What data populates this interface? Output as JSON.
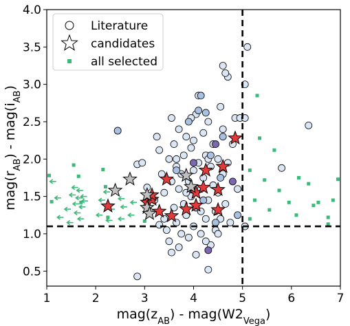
{
  "chart_data": {
    "type": "scatter",
    "xlabel": "mag(z_AB) - mag(W2_Vega)",
    "ylabel": "mag(r_AB) - mag(i_AB)",
    "xlim": [
      1,
      7
    ],
    "ylim": [
      0.3,
      4.0
    ],
    "xticks": [
      1,
      2,
      3,
      4,
      5,
      6,
      7
    ],
    "yticks": [
      0.5,
      1.0,
      1.5,
      2.0,
      2.5,
      3.0,
      3.5,
      4.0
    ],
    "xtick_labels": [
      "1",
      "2",
      "3",
      "4",
      "5",
      "6",
      "7"
    ],
    "ytick_labels": [
      "0.5",
      "1.0",
      "1.5",
      "2.0",
      "2.5",
      "3.0",
      "3.5",
      "4.0"
    ],
    "grid": false,
    "legend_position": "top-left",
    "cut_lines": {
      "x": 5.0,
      "y": 1.1
    },
    "colors": {
      "literature_face": "#dbe6f4",
      "literature_alt": "#a9c0e0",
      "literature_dark": "#7b68b0",
      "candidate_red": "#e03a3a",
      "candidate_gray": "#c0c0c0",
      "all_selected": "#3cb878",
      "arrow": "#3cb878"
    },
    "series": [
      {
        "name": "Literature",
        "marker": "circle",
        "points": [
          [
            2.45,
            2.38
          ],
          [
            2.85,
            1.93
          ],
          [
            2.85,
            0.43
          ],
          [
            2.95,
            1.95
          ],
          [
            3.05,
            1.62
          ],
          [
            3.1,
            1.3
          ],
          [
            3.2,
            1.45
          ],
          [
            3.25,
            2.3
          ],
          [
            3.3,
            2.12
          ],
          [
            3.35,
            1.8
          ],
          [
            3.4,
            1.2
          ],
          [
            3.4,
            1.55
          ],
          [
            3.45,
            1.05
          ],
          [
            3.5,
            2.0
          ],
          [
            3.5,
            0.9
          ],
          [
            3.55,
            1.7
          ],
          [
            3.55,
            2.55
          ],
          [
            3.6,
            1.35
          ],
          [
            3.6,
            2.2
          ],
          [
            3.65,
            1.9
          ],
          [
            3.65,
            1.15
          ],
          [
            3.7,
            1.6
          ],
          [
            3.7,
            2.4
          ],
          [
            3.75,
            1.0
          ],
          [
            3.75,
            1.8
          ],
          [
            3.8,
            2.05
          ],
          [
            3.8,
            1.4
          ],
          [
            3.85,
            1.25
          ],
          [
            3.85,
            2.3
          ],
          [
            3.9,
            1.7
          ],
          [
            3.9,
            0.95
          ],
          [
            3.95,
            2.15
          ],
          [
            3.95,
            1.5
          ],
          [
            4.0,
            1.85
          ],
          [
            4.0,
            1.1
          ],
          [
            4.05,
            2.6
          ],
          [
            4.05,
            1.35
          ],
          [
            4.1,
            1.95
          ],
          [
            4.1,
            2.85
          ],
          [
            4.15,
            1.6
          ],
          [
            4.15,
            1.0
          ],
          [
            4.2,
            2.35
          ],
          [
            4.2,
            1.75
          ],
          [
            4.25,
            1.2
          ],
          [
            4.25,
            2.05
          ],
          [
            4.3,
            1.45
          ],
          [
            4.3,
            2.5
          ],
          [
            4.35,
            1.9
          ],
          [
            4.35,
            0.85
          ],
          [
            4.4,
            1.65
          ],
          [
            4.4,
            2.2
          ],
          [
            4.45,
            1.3
          ],
          [
            4.45,
            1.05
          ],
          [
            4.5,
            2.0
          ],
          [
            4.5,
            1.55
          ],
          [
            4.55,
            2.7
          ],
          [
            4.55,
            1.2
          ],
          [
            4.6,
            1.8
          ],
          [
            4.6,
            2.4
          ],
          [
            4.65,
            1.4
          ],
          [
            4.7,
            3.1
          ],
          [
            4.7,
            1.95
          ],
          [
            4.75,
            1.15
          ],
          [
            4.8,
            2.2
          ],
          [
            4.85,
            2.55
          ],
          [
            4.9,
            1.6
          ],
          [
            4.95,
            2.55
          ],
          [
            5.05,
            3.0
          ],
          [
            5.05,
            2.55
          ],
          [
            5.05,
            1.1
          ],
          [
            5.1,
            3.5
          ],
          [
            3.55,
            0.75
          ],
          [
            3.7,
            0.82
          ],
          [
            4.05,
            0.72
          ],
          [
            4.25,
            0.9
          ],
          [
            4.3,
            0.52
          ],
          [
            3.65,
            2.0
          ],
          [
            3.85,
            1.55
          ],
          [
            4.15,
            1.3
          ],
          [
            4.5,
            1.0
          ],
          [
            5.8,
            1.88
          ],
          [
            6.35,
            2.45
          ],
          [
            4.6,
            3.25
          ],
          [
            4.65,
            3.15
          ],
          [
            4.0,
            2.25
          ],
          [
            3.3,
            1.12
          ],
          [
            3.95,
            2.55
          ],
          [
            4.3,
            2.0
          ]
        ]
      },
      {
        "name": "Literature (shaded)",
        "marker": "circle-dark",
        "points": [
          [
            2.45,
            2.38
          ],
          [
            4.15,
            2.85
          ],
          [
            4.25,
            2.62
          ],
          [
            4.45,
            2.2
          ],
          [
            4.6,
            2.3
          ],
          [
            4.1,
            2.65
          ],
          [
            3.9,
            2.5
          ],
          [
            4.0,
            1.95
          ],
          [
            4.35,
            2.05
          ],
          [
            4.2,
            1.45
          ],
          [
            4.55,
            1.75
          ],
          [
            4.8,
            1.7
          ],
          [
            4.9,
            1.25
          ],
          [
            3.65,
            1.85
          ],
          [
            4.45,
            1.15
          ],
          [
            4.3,
            0.78
          ],
          [
            4.05,
            1.35
          ],
          [
            3.95,
            1.6
          ]
        ]
      },
      {
        "name": "candidates",
        "marker": "star",
        "points": [
          [
            2.25,
            1.37
          ],
          [
            3.05,
            1.42
          ],
          [
            3.15,
            1.46
          ],
          [
            3.3,
            1.3
          ],
          [
            3.45,
            1.73
          ],
          [
            3.55,
            1.24
          ],
          [
            3.85,
            1.33
          ],
          [
            4.05,
            1.55
          ],
          [
            4.2,
            1.62
          ],
          [
            4.25,
            1.85
          ],
          [
            4.5,
            1.59
          ],
          [
            4.5,
            1.32
          ],
          [
            4.6,
            1.9
          ],
          [
            4.85,
            2.28
          ],
          [
            3.15,
            1.52
          ],
          [
            4.05,
            1.38
          ]
        ]
      },
      {
        "name": "candidates (gray)",
        "marker": "star-gray",
        "points": [
          [
            2.4,
            1.58
          ],
          [
            2.7,
            1.73
          ],
          [
            3.05,
            1.52
          ],
          [
            3.05,
            1.35
          ],
          [
            3.1,
            1.27
          ],
          [
            3.95,
            1.63
          ],
          [
            3.85,
            1.78
          ]
        ]
      },
      {
        "name": "all selected",
        "marker": "square",
        "points": [
          [
            1.05,
            1.78
          ],
          [
            1.1,
            1.43
          ],
          [
            1.55,
            1.92
          ],
          [
            1.65,
            1.77
          ],
          [
            1.7,
            1.42
          ],
          [
            2.15,
            1.86
          ],
          [
            2.2,
            1.63
          ],
          [
            2.25,
            1.22
          ],
          [
            3.0,
            1.17
          ],
          [
            3.05,
            1.28
          ],
          [
            5.15,
            1.85
          ],
          [
            5.25,
            1.45
          ],
          [
            5.3,
            2.85
          ],
          [
            5.35,
            2.28
          ],
          [
            5.45,
            1.72
          ],
          [
            5.55,
            1.32
          ],
          [
            5.75,
            1.58
          ],
          [
            6.1,
            1.25
          ],
          [
            6.15,
            1.75
          ],
          [
            6.35,
            1.67
          ],
          [
            6.55,
            1.42
          ],
          [
            6.75,
            1.22
          ],
          [
            6.85,
            1.45
          ],
          [
            6.95,
            1.73
          ],
          [
            5.95,
            1.42
          ],
          [
            5.15,
            1.2
          ],
          [
            6.45,
            1.38
          ],
          [
            5.65,
            2.12
          ],
          [
            6.75,
            1.13
          ]
        ]
      },
      {
        "name": "all selected (upper limits)",
        "marker": "arrow-left",
        "points": [
          [
            1.15,
            1.7
          ],
          [
            1.25,
            1.48
          ],
          [
            1.3,
            1.22
          ],
          [
            1.45,
            1.33
          ],
          [
            1.5,
            1.15
          ],
          [
            1.55,
            1.52
          ],
          [
            1.6,
            1.62
          ],
          [
            1.62,
            1.4
          ],
          [
            1.65,
            1.28
          ],
          [
            1.68,
            1.48
          ],
          [
            1.7,
            1.58
          ],
          [
            1.72,
            1.2
          ],
          [
            1.75,
            1.36
          ],
          [
            1.78,
            1.5
          ],
          [
            1.8,
            1.44
          ],
          [
            2.1,
            1.25
          ],
          [
            2.15,
            1.45
          ],
          [
            2.25,
            1.56
          ],
          [
            2.3,
            1.18
          ],
          [
            2.35,
            1.33
          ],
          [
            2.55,
            1.2
          ],
          [
            2.55,
            1.47
          ],
          [
            2.6,
            1.36
          ],
          [
            2.75,
            1.25
          ],
          [
            2.8,
            1.42
          ]
        ]
      }
    ],
    "legend": [
      {
        "label": "Literature",
        "marker": "circle"
      },
      {
        "label": "candidates",
        "marker": "star"
      },
      {
        "label": "all selected",
        "marker": "square"
      }
    ]
  }
}
